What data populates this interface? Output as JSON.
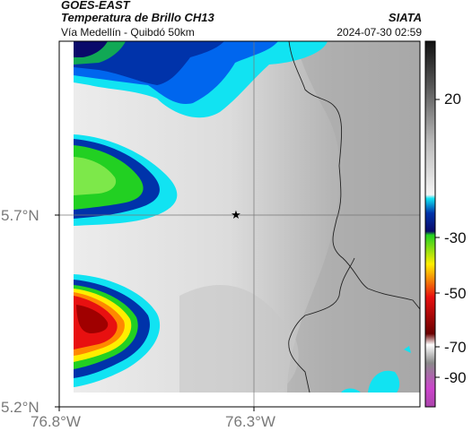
{
  "header": {
    "satellite": "GOES-EAST",
    "product": "Temperatura de Brillo CH13",
    "route": "Vía Medellín - Quibdó 50km",
    "org": "SIATA",
    "timestamp": "2024-07-30 02:59"
  },
  "axes": {
    "lat_ticks": [
      "5.7°N",
      "5.2°N"
    ],
    "lon_ticks": [
      "76.8°W",
      "76.3°W"
    ]
  },
  "colorbar": {
    "ticks": [
      "20",
      "-30",
      "-50",
      "-70",
      "-90"
    ]
  },
  "map": {
    "marker": "star-icon",
    "colors": {
      "land_gray": "#a8a8a8",
      "cloud_white": "#f2f2f2",
      "cyan": "#11e3f2",
      "blue": "#0033aa",
      "navy": "#0a0a6a",
      "green": "#22d022",
      "yellow": "#ffee00",
      "red": "#e81010",
      "dark_red": "#6a0000"
    }
  }
}
